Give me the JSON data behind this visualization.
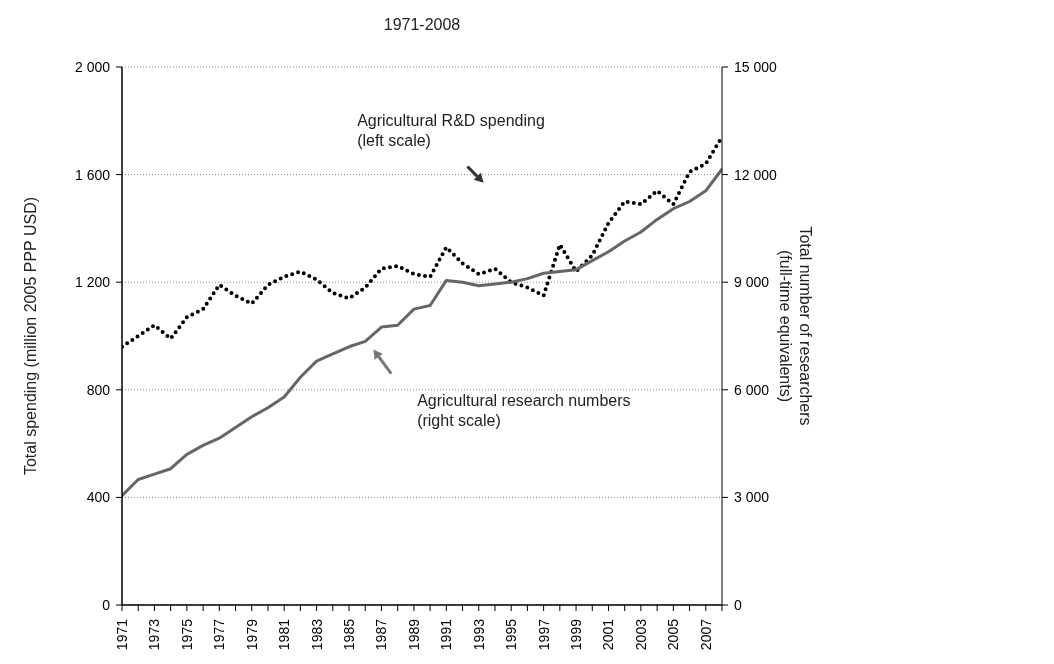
{
  "chart_data": {
    "type": "line",
    "title": "1971-2008",
    "ylabel": "Total spending (million 2005 PPP USD)",
    "y2label": "Total number of researchers\n(full-time equivalents)",
    "annotations": [
      "Agricultural R&D spending\n(left scale)",
      "Agricultural research  numbers\n(right scale)"
    ],
    "x": [
      1971,
      1972,
      1973,
      1974,
      1975,
      1976,
      1977,
      1978,
      1979,
      1980,
      1981,
      1982,
      1983,
      1984,
      1985,
      1986,
      1987,
      1988,
      1989,
      1990,
      1991,
      1992,
      1993,
      1994,
      1995,
      1996,
      1997,
      1998,
      1999,
      2000,
      2001,
      2002,
      2003,
      2004,
      2005,
      2006,
      2007,
      2008
    ],
    "series": [
      {
        "color": "#000000",
        "line_style": "dotted",
        "values": [
          960,
          1000,
          1040,
          990,
          1070,
          1100,
          1190,
          1150,
          1120,
          1190,
          1220,
          1240,
          1210,
          1160,
          1140,
          1180,
          1250,
          1260,
          1230,
          1220,
          1330,
          1270,
          1230,
          1250,
          1200,
          1180,
          1150,
          1340,
          1240,
          1300,
          1420,
          1500,
          1490,
          1540,
          1490,
          1610,
          1640,
          1740
        ]
      },
      {
        "color": "#666666",
        "line_style": "solid",
        "axis": "y2",
        "values": [
          3050,
          3500,
          3650,
          3800,
          4200,
          4450,
          4650,
          4950,
          5250,
          5500,
          5800,
          6350,
          6800,
          7000,
          7200,
          7350,
          7750,
          7800,
          8250,
          8350,
          9050,
          9000,
          8900,
          8950,
          9000,
          9100,
          9250,
          9300,
          9350,
          9600,
          9850,
          10150,
          10400,
          10750,
          11050,
          11250,
          11550,
          12150
        ]
      }
    ],
    "xlim": [
      1971,
      2008
    ],
    "xticks": [
      1971,
      {
        "value": 1972,
        "label": null
      },
      1973,
      {
        "value": 1974,
        "label": null
      },
      1975,
      {
        "value": 1976,
        "label": null
      },
      1977,
      {
        "value": 1978,
        "label": null
      },
      1979,
      {
        "value": 1980,
        "label": null
      },
      1981,
      {
        "value": 1982,
        "label": null
      },
      1983,
      {
        "value": 1984,
        "label": null
      },
      1985,
      {
        "value": 1986,
        "label": null
      },
      1987,
      {
        "value": 1988,
        "label": null
      },
      1989,
      {
        "value": 1990,
        "label": null
      },
      1991,
      {
        "value": 1992,
        "label": null
      },
      1993,
      {
        "value": 1994,
        "label": null
      },
      1995,
      {
        "value": 1996,
        "label": null
      },
      1997,
      {
        "value": 1998,
        "label": null
      },
      1999,
      {
        "value": 2000,
        "label": null
      },
      2001,
      {
        "value": 2002,
        "label": null
      },
      2003,
      {
        "value": 2004,
        "label": null
      },
      2005,
      {
        "value": 2006,
        "label": null
      },
      2007,
      {
        "value": 2008,
        "label": null
      }
    ],
    "ylim": [
      0,
      2000
    ],
    "yticks": [
      0,
      400,
      800,
      {
        "value": 1200,
        "label": "1 200"
      },
      {
        "value": 1600,
        "label": "1 600"
      },
      {
        "value": 2000,
        "label": "2 000"
      }
    ],
    "y2lim": [
      0,
      15000
    ],
    "y2ticks": [
      0,
      {
        "value": 3000,
        "label": "3 000"
      },
      {
        "value": 6000,
        "label": "6 000"
      },
      {
        "value": 9000,
        "label": "9 000"
      },
      {
        "value": 12000,
        "label": "12 000"
      },
      {
        "value": 15000,
        "label": "15 000"
      }
    ],
    "grid": "y",
    "marker": "none"
  }
}
